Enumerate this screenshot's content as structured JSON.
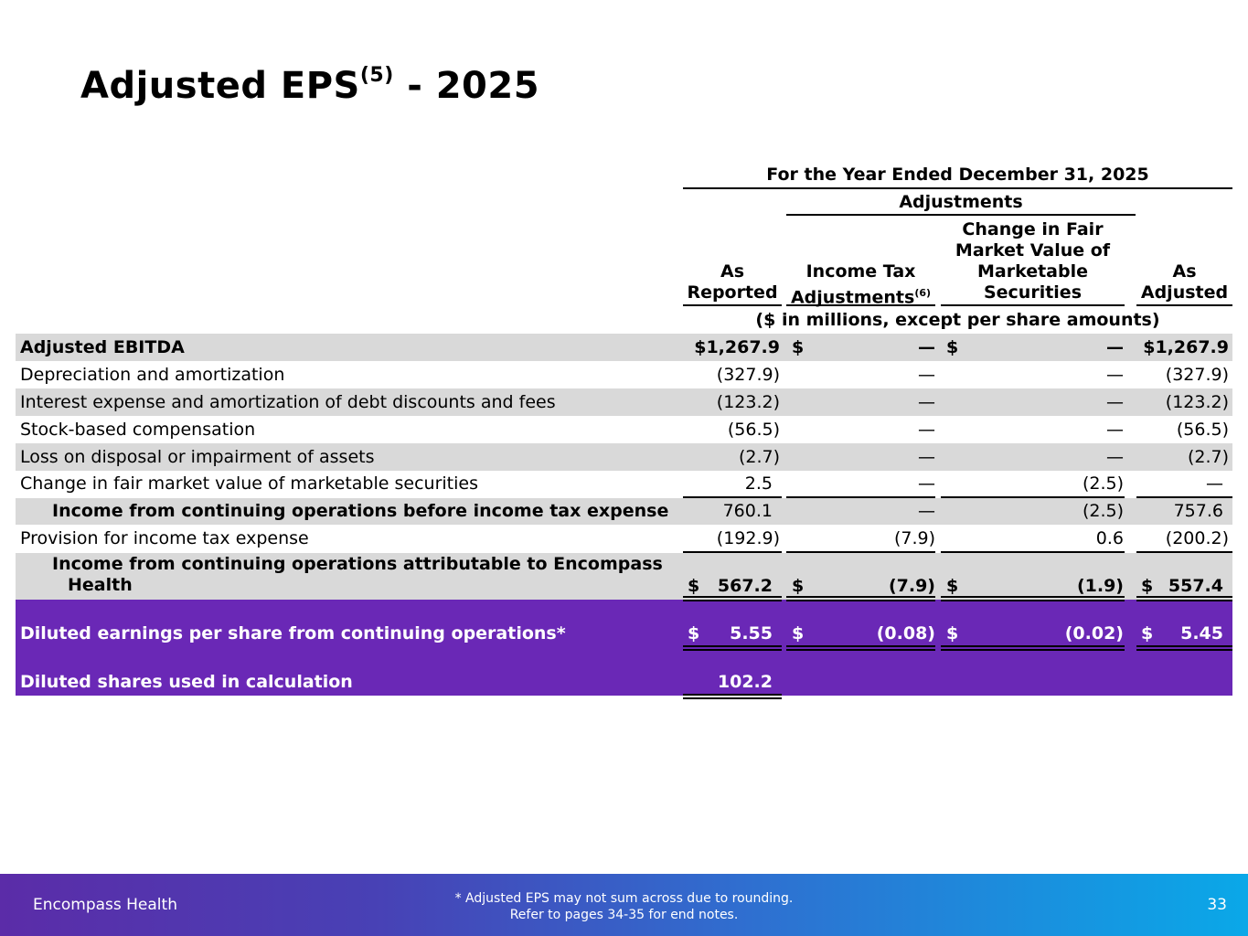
{
  "title": {
    "main": "Adjusted EPS",
    "sup": "(5)",
    "suffix": " - 2025"
  },
  "header": {
    "period": "For the Year Ended December 31, 2025",
    "adjustments": "Adjustments",
    "col_reported": [
      "As",
      "Reported"
    ],
    "col_tax": [
      "Income Tax",
      "Adjustments"
    ],
    "col_tax_sup": "(6)",
    "col_fmv": [
      "Change in Fair",
      "Market Value of",
      "Marketable",
      "Securities"
    ],
    "col_adjusted": [
      "As",
      "Adjusted"
    ],
    "units": "($ in millions, except per share amounts)"
  },
  "rows": [
    {
      "label": "Adjusted EBITDA",
      "d1": "$1,267.9",
      "ds2": "$",
      "d2": "—",
      "ds3": "$",
      "d3": "—",
      "d4": "$1,267.9"
    },
    {
      "label": "Depreciation and amortization",
      "d1": "(327.9)",
      "d2": "—",
      "d3": "—",
      "d4": "(327.9)"
    },
    {
      "label": "Interest expense and amortization of debt discounts and fees",
      "d1": "(123.2)",
      "d2": "—",
      "d3": "—",
      "d4": "(123.2)"
    },
    {
      "label": "Stock-based compensation",
      "d1": "(56.5)",
      "d2": "—",
      "d3": "—",
      "d4": "(56.5)"
    },
    {
      "label": "Loss on disposal or impairment of assets",
      "d1": "(2.7)",
      "d2": "—",
      "d3": "—",
      "d4": "(2.7)"
    },
    {
      "label": "Change in fair market value of marketable securities",
      "d1": "2.5",
      "d2": "—",
      "d3": "(2.5)",
      "d4": "—"
    },
    {
      "label": "Income from continuing operations before income tax expense",
      "d1": "760.1",
      "d2": "—",
      "d3": "(2.5)",
      "d4": "757.6"
    },
    {
      "label": "Provision for income tax expense",
      "d1": "(192.9)",
      "d2": "(7.9)",
      "d3": "0.6",
      "d4": "(200.2)"
    },
    {
      "label": [
        "Income from continuing operations attributable to Encompass",
        "Health"
      ],
      "ds1": "$",
      "d1": "567.2",
      "ds2": "$",
      "d2": "(7.9)",
      "ds3": "$",
      "d3": "(1.9)",
      "ds4": "$",
      "d4": "557.4"
    },
    {
      "label": "Diluted earnings per share from continuing operations*",
      "ds1": "$",
      "d1": "5.55",
      "ds2": "$",
      "d2": "(0.08)",
      "ds3": "$",
      "d3": "(0.02)",
      "ds4": "$",
      "d4": "5.45"
    },
    {
      "label": "Diluted shares used in calculation",
      "d1": "102.2"
    }
  ],
  "footer": {
    "brand": "Encompass Health",
    "note": [
      "*  Adjusted EPS may not sum across due to rounding.",
      "Refer to pages 34-35 for end notes."
    ],
    "page": "33"
  },
  "colors": {
    "purple": "#6a28b6",
    "shade": "#d9d9d9"
  }
}
